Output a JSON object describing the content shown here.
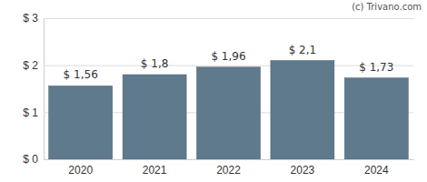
{
  "chart_data": {
    "type": "bar",
    "annotation": "(c) Trivano.com",
    "categories": [
      "2020",
      "2021",
      "2022",
      "2023",
      "2024"
    ],
    "values": [
      1.56,
      1.8,
      1.96,
      2.1,
      1.73
    ],
    "value_labels": [
      "$ 1,56",
      "$ 1,8",
      "$ 1,96",
      "$ 2,1",
      "$ 1,73"
    ],
    "color": "#5f7a8c",
    "ylim": [
      0,
      3
    ],
    "yticks": [
      {
        "value": 0,
        "label": "$ 0"
      },
      {
        "value": 1,
        "label": "$ 1"
      },
      {
        "value": 2,
        "label": "$ 2"
      },
      {
        "value": 3,
        "label": "$ 3"
      }
    ],
    "grid": true,
    "data_labels": true
  }
}
